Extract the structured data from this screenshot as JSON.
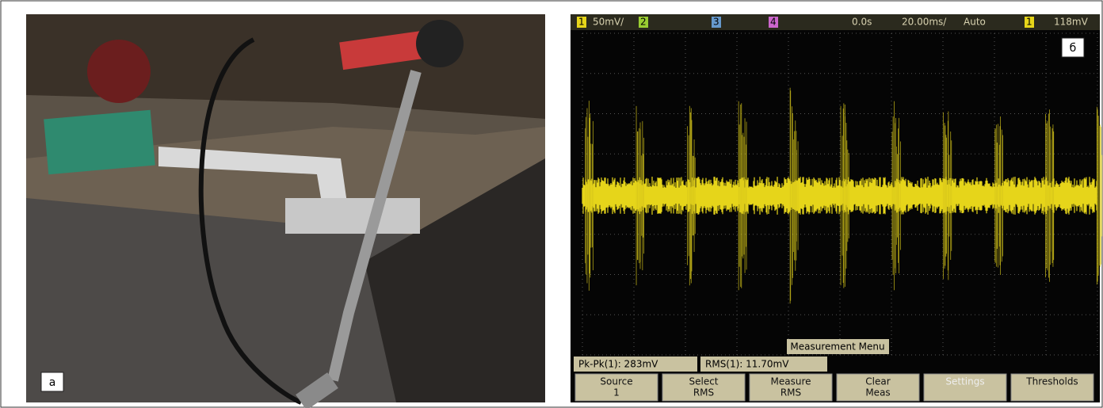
{
  "photo": {
    "label": "a"
  },
  "scope": {
    "label": "б",
    "header": {
      "ch1": "1",
      "ch1_scale": "50mV/",
      "ch2": "2",
      "ch3": "3",
      "ch4": "4",
      "delay": "0.0s",
      "timebase": "20.00ms/",
      "mode": "Auto",
      "trig_ch": "1",
      "trig_level": "118mV"
    },
    "menu_title": "Measurement Menu",
    "measurements": [
      "Pk-Pk(1): 283mV",
      "RMS(1): 11.70mV"
    ],
    "softkeys": [
      [
        "Source",
        "1"
      ],
      [
        "Select",
        "RMS"
      ],
      [
        "Measure",
        "RMS"
      ],
      [
        "Clear",
        "Meas"
      ],
      [
        "Settings",
        ""
      ],
      [
        "Thresholds",
        ""
      ]
    ]
  }
}
